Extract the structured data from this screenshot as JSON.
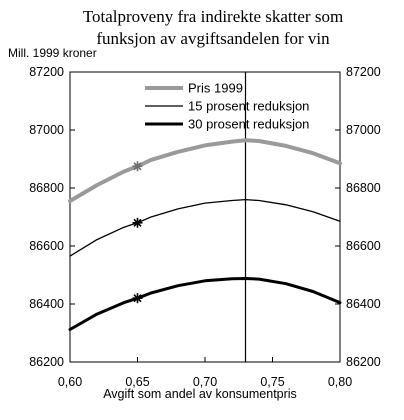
{
  "chart_data": {
    "type": "line",
    "title_lines": [
      "Totalproveny fra indirekte skatter som",
      "funksjon av avgiftsandelen for vin"
    ],
    "ylabel": "Mill. 1999 kroner",
    "xlabel": "Avgift som andel av konsumentpris",
    "xlim": [
      0.6,
      0.8
    ],
    "ylim": [
      86200,
      87200
    ],
    "x_ticks": [
      0.6,
      0.65,
      0.7,
      0.75,
      0.8
    ],
    "x_tick_labels": [
      "0,60",
      "0,65",
      "0,70",
      "0,75",
      "0,80"
    ],
    "y_ticks": [
      86200,
      86400,
      86600,
      86800,
      87000,
      87200
    ],
    "y_tick_labels": [
      "86200",
      "86400",
      "86600",
      "86800",
      "87000",
      "87200"
    ],
    "grid": false,
    "legend_position": "top",
    "vertical_line_x": 0.73,
    "series": [
      {
        "name": "Pris 1999",
        "color": "#9a9a9a",
        "style": "thick-grey",
        "x": [
          0.6,
          0.62,
          0.64,
          0.65,
          0.66,
          0.68,
          0.7,
          0.72,
          0.73,
          0.74,
          0.76,
          0.78,
          0.8
        ],
        "y": [
          86755,
          86810,
          86857,
          86875,
          86897,
          86925,
          86947,
          86960,
          86965,
          86962,
          86945,
          86920,
          86885
        ],
        "marker_x": 0.65,
        "marker_y": 86875
      },
      {
        "name": "15 prosent reduksjon",
        "color": "#000000",
        "style": "thin-black",
        "x": [
          0.6,
          0.62,
          0.64,
          0.65,
          0.66,
          0.68,
          0.7,
          0.72,
          0.73,
          0.74,
          0.76,
          0.78,
          0.8
        ],
        "y": [
          86565,
          86622,
          86665,
          86680,
          86700,
          86728,
          86748,
          86757,
          86760,
          86757,
          86742,
          86718,
          86685
        ],
        "marker_x": 0.65,
        "marker_y": 86680
      },
      {
        "name": "30 prosent reduksjon",
        "color": "#000000",
        "style": "thick-black",
        "x": [
          0.6,
          0.62,
          0.64,
          0.65,
          0.66,
          0.68,
          0.7,
          0.72,
          0.73,
          0.74,
          0.76,
          0.78,
          0.8
        ],
        "y": [
          86312,
          86365,
          86405,
          86420,
          86438,
          86463,
          86480,
          86487,
          86488,
          86486,
          86470,
          86443,
          86405
        ],
        "marker_x": 0.65,
        "marker_y": 86420
      }
    ]
  }
}
